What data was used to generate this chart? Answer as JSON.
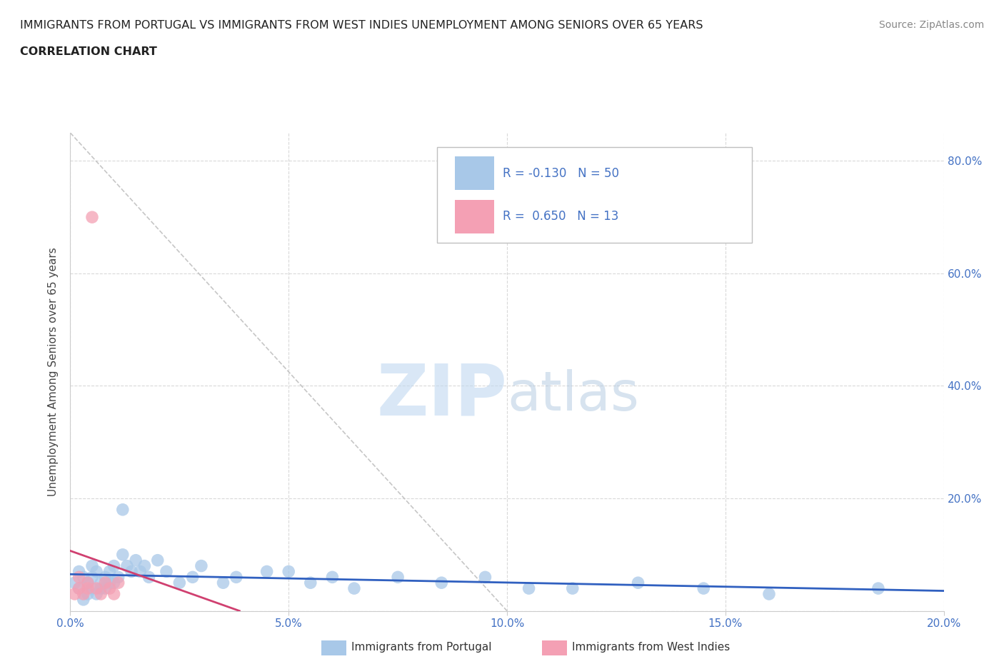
{
  "title_line1": "IMMIGRANTS FROM PORTUGAL VS IMMIGRANTS FROM WEST INDIES UNEMPLOYMENT AMONG SENIORS OVER 65 YEARS",
  "title_line2": "CORRELATION CHART",
  "source": "Source: ZipAtlas.com",
  "xlabel_portugal": "Immigrants from Portugal",
  "xlabel_west_indies": "Immigrants from West Indies",
  "ylabel": "Unemployment Among Seniors over 65 years",
  "xlim": [
    0.0,
    0.2
  ],
  "ylim": [
    0.0,
    0.85
  ],
  "x_ticks": [
    0.0,
    0.05,
    0.1,
    0.15,
    0.2
  ],
  "x_tick_labels": [
    "0.0%",
    "5.0%",
    "10.0%",
    "15.0%",
    "20.0%"
  ],
  "y_ticks": [
    0.0,
    0.2,
    0.4,
    0.6,
    0.8
  ],
  "y_tick_labels_right": [
    "",
    "20.0%",
    "40.0%",
    "60.0%",
    "80.0%"
  ],
  "color_portugal": "#a8c8e8",
  "color_west_indies": "#f4a0b4",
  "trendline_portugal_color": "#3060c0",
  "trendline_west_indies_color": "#d04070",
  "trendline_dashed_color": "#c0c0c0",
  "R_portugal": -0.13,
  "N_portugal": 50,
  "R_west_indies": 0.65,
  "N_west_indies": 13,
  "portugal_x": [
    0.001,
    0.002,
    0.002,
    0.003,
    0.003,
    0.004,
    0.004,
    0.005,
    0.005,
    0.005,
    0.006,
    0.006,
    0.007,
    0.007,
    0.008,
    0.008,
    0.009,
    0.009,
    0.01,
    0.01,
    0.011,
    0.012,
    0.012,
    0.013,
    0.014,
    0.015,
    0.016,
    0.017,
    0.018,
    0.02,
    0.022,
    0.025,
    0.028,
    0.03,
    0.035,
    0.038,
    0.045,
    0.05,
    0.055,
    0.06,
    0.065,
    0.075,
    0.085,
    0.095,
    0.105,
    0.115,
    0.13,
    0.145,
    0.16,
    0.185
  ],
  "portugal_y": [
    0.05,
    0.04,
    0.07,
    0.02,
    0.06,
    0.05,
    0.03,
    0.04,
    0.06,
    0.08,
    0.03,
    0.07,
    0.04,
    0.05,
    0.06,
    0.04,
    0.05,
    0.07,
    0.08,
    0.05,
    0.06,
    0.18,
    0.1,
    0.08,
    0.07,
    0.09,
    0.07,
    0.08,
    0.06,
    0.09,
    0.07,
    0.05,
    0.06,
    0.08,
    0.05,
    0.06,
    0.07,
    0.07,
    0.05,
    0.06,
    0.04,
    0.06,
    0.05,
    0.06,
    0.04,
    0.04,
    0.05,
    0.04,
    0.03,
    0.04
  ],
  "west_indies_x": [
    0.001,
    0.002,
    0.002,
    0.003,
    0.004,
    0.004,
    0.005,
    0.006,
    0.007,
    0.008,
    0.009,
    0.01,
    0.011
  ],
  "west_indies_y": [
    0.03,
    0.04,
    0.06,
    0.03,
    0.05,
    0.04,
    0.7,
    0.04,
    0.03,
    0.05,
    0.04,
    0.03,
    0.05
  ],
  "watermark_zip": "ZIP",
  "watermark_atlas": "atlas",
  "watermark_color_zip": "#c0d8f0",
  "watermark_color_atlas": "#b0c8e0",
  "grid_color": "#d0d0d0",
  "title_color": "#222222",
  "axis_label_color": "#444444",
  "tick_label_color": "#4472c4",
  "source_color": "#888888",
  "legend_box_portugal": "#a8c8e8",
  "legend_box_west_indies": "#f4a0b4",
  "legend_R_color": "#4472c4",
  "legend_N_color": "#4472c4"
}
